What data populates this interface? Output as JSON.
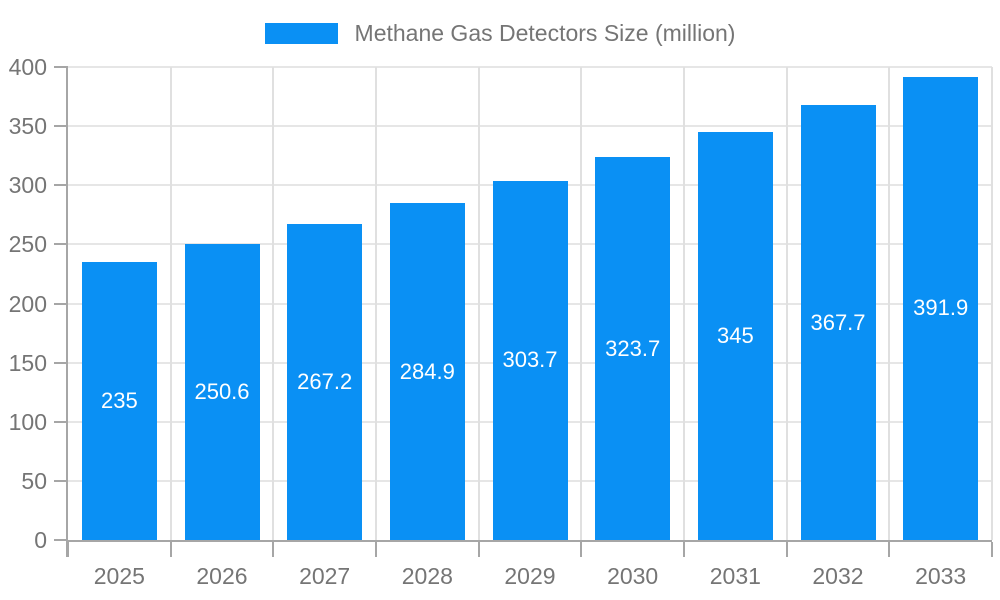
{
  "chart_data": {
    "type": "bar",
    "legend": "Methane Gas Detectors Size (million)",
    "legend_position": "top",
    "categories": [
      "2025",
      "2026",
      "2027",
      "2028",
      "2029",
      "2030",
      "2031",
      "2032",
      "2033"
    ],
    "values": [
      235,
      250.6,
      267.2,
      284.9,
      303.7,
      323.7,
      345,
      367.7,
      391.9
    ],
    "value_labels": [
      "235",
      "250.6",
      "267.2",
      "284.9",
      "303.7",
      "323.7",
      "345",
      "367.7",
      "391.9"
    ],
    "ylim": [
      0,
      400
    ],
    "y_ticks": [
      0,
      50,
      100,
      150,
      200,
      250,
      300,
      350,
      400
    ],
    "grid": true,
    "colors": {
      "bar": "#0a90f4",
      "value_label": "#ffffff",
      "axis": "#a6a6a6",
      "grid_h": "#e6e6e6",
      "grid_v": "#e0e0e0",
      "text": "#757575"
    }
  }
}
